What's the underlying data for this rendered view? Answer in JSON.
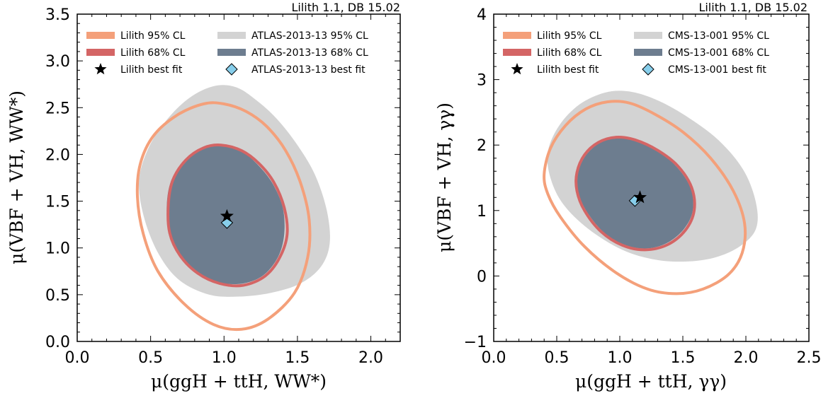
{
  "chart_data": [
    {
      "type": "contour",
      "corner_text": "Lilith 1.1, DB 15.02",
      "xlabel": "μ(ggH + ttH, WW*)",
      "ylabel": "μ(VBF + VH, WW*)",
      "xlim": [
        0.0,
        2.2
      ],
      "ylim": [
        0.0,
        3.5
      ],
      "xticks": [
        "0.0",
        "0.5",
        "1.0",
        "1.5",
        "2.0"
      ],
      "yticks": [
        "0.0",
        "0.5",
        "1.0",
        "1.5",
        "2.0",
        "2.5",
        "3.0",
        "3.5"
      ],
      "legend_position": "top",
      "series": [
        {
          "name": "Lilith 95% CL",
          "kind": "contour-line",
          "color": "#f4a07a",
          "points": [
            [
              0.41,
              1.55
            ],
            [
              0.43,
              1.9
            ],
            [
              0.52,
              2.2
            ],
            [
              0.68,
              2.42
            ],
            [
              0.86,
              2.54
            ],
            [
              1.0,
              2.54
            ],
            [
              1.15,
              2.46
            ],
            [
              1.29,
              2.3
            ],
            [
              1.42,
              2.04
            ],
            [
              1.52,
              1.7
            ],
            [
              1.58,
              1.3
            ],
            [
              1.57,
              0.9
            ],
            [
              1.48,
              0.52
            ],
            [
              1.3,
              0.24
            ],
            [
              1.12,
              0.13
            ],
            [
              0.93,
              0.18
            ],
            [
              0.73,
              0.4
            ],
            [
              0.55,
              0.75
            ],
            [
              0.45,
              1.15
            ]
          ]
        },
        {
          "name": "Lilith 68% CL",
          "kind": "contour-line",
          "color": "#d46565",
          "points": [
            [
              0.62,
              1.45
            ],
            [
              0.65,
              1.72
            ],
            [
              0.74,
              1.94
            ],
            [
              0.86,
              2.07
            ],
            [
              0.98,
              2.1
            ],
            [
              1.12,
              2.04
            ],
            [
              1.24,
              1.9
            ],
            [
              1.34,
              1.7
            ],
            [
              1.41,
              1.43
            ],
            [
              1.43,
              1.15
            ],
            [
              1.38,
              0.9
            ],
            [
              1.28,
              0.7
            ],
            [
              1.13,
              0.6
            ],
            [
              0.97,
              0.62
            ],
            [
              0.82,
              0.73
            ],
            [
              0.7,
              0.92
            ],
            [
              0.63,
              1.16
            ]
          ]
        },
        {
          "name": "ATLAS-2013-13 95% CL",
          "kind": "filled-region",
          "color": "#d3d3d3",
          "points": [
            [
              0.42,
              1.7
            ],
            [
              0.48,
              2.05
            ],
            [
              0.6,
              2.35
            ],
            [
              0.76,
              2.6
            ],
            [
              0.93,
              2.73
            ],
            [
              1.08,
              2.72
            ],
            [
              1.22,
              2.58
            ],
            [
              1.36,
              2.38
            ],
            [
              1.5,
              2.1
            ],
            [
              1.62,
              1.78
            ],
            [
              1.7,
              1.4
            ],
            [
              1.72,
              1.05
            ],
            [
              1.66,
              0.8
            ],
            [
              1.52,
              0.62
            ],
            [
              1.32,
              0.52
            ],
            [
              1.1,
              0.48
            ],
            [
              0.9,
              0.5
            ],
            [
              0.7,
              0.65
            ],
            [
              0.56,
              0.92
            ],
            [
              0.46,
              1.3
            ]
          ]
        },
        {
          "name": "ATLAS-2013-13 68% CL",
          "kind": "filled-region",
          "color": "#6d7d8f",
          "points": [
            [
              0.61,
              1.45
            ],
            [
              0.64,
              1.72
            ],
            [
              0.73,
              1.93
            ],
            [
              0.85,
              2.06
            ],
            [
              0.98,
              2.09
            ],
            [
              1.12,
              2.03
            ],
            [
              1.23,
              1.89
            ],
            [
              1.33,
              1.69
            ],
            [
              1.4,
              1.43
            ],
            [
              1.41,
              1.15
            ],
            [
              1.37,
              0.91
            ],
            [
              1.27,
              0.71
            ],
            [
              1.13,
              0.62
            ],
            [
              0.97,
              0.63
            ],
            [
              0.82,
              0.74
            ],
            [
              0.7,
              0.93
            ],
            [
              0.63,
              1.17
            ]
          ]
        },
        {
          "name": "Lilith best fit",
          "kind": "marker",
          "marker": "star",
          "color": "#000000",
          "x": 1.02,
          "y": 1.34
        },
        {
          "name": "ATLAS-2013-13 best fit",
          "kind": "marker",
          "marker": "diamond",
          "color": "#87ceeb",
          "x": 1.02,
          "y": 1.27
        }
      ]
    },
    {
      "type": "contour",
      "corner_text": "Lilith 1.1, DB 15.02",
      "xlabel": "μ(ggH + ttH, γγ)",
      "ylabel": "μ(VBF + VH, γγ)",
      "xlim": [
        0.0,
        2.5
      ],
      "ylim": [
        -1.0,
        4.0
      ],
      "xticks": [
        "0.0",
        "0.5",
        "1.0",
        "1.5",
        "2.0",
        "2.5"
      ],
      "yticks": [
        "−1",
        "0",
        "1",
        "2",
        "3",
        "4"
      ],
      "legend_position": "top",
      "series": [
        {
          "name": "Lilith 95% CL",
          "kind": "contour-line",
          "color": "#f4a07a",
          "points": [
            [
              0.4,
              1.55
            ],
            [
              0.45,
              1.95
            ],
            [
              0.57,
              2.3
            ],
            [
              0.73,
              2.55
            ],
            [
              0.9,
              2.66
            ],
            [
              1.08,
              2.64
            ],
            [
              1.28,
              2.47
            ],
            [
              1.5,
              2.2
            ],
            [
              1.72,
              1.8
            ],
            [
              1.9,
              1.3
            ],
            [
              1.99,
              0.8
            ],
            [
              1.97,
              0.35
            ],
            [
              1.86,
              0.02
            ],
            [
              1.66,
              -0.2
            ],
            [
              1.45,
              -0.27
            ],
            [
              1.22,
              -0.2
            ],
            [
              0.97,
              0.05
            ],
            [
              0.72,
              0.45
            ],
            [
              0.53,
              0.9
            ],
            [
              0.43,
              1.25
            ]
          ]
        },
        {
          "name": "Lilith 68% CL",
          "kind": "contour-line",
          "color": "#d46565",
          "points": [
            [
              0.66,
              1.58
            ],
            [
              0.72,
              1.85
            ],
            [
              0.83,
              2.04
            ],
            [
              0.97,
              2.12
            ],
            [
              1.12,
              2.08
            ],
            [
              1.3,
              1.92
            ],
            [
              1.46,
              1.68
            ],
            [
              1.57,
              1.35
            ],
            [
              1.59,
              1.0
            ],
            [
              1.52,
              0.7
            ],
            [
              1.38,
              0.48
            ],
            [
              1.2,
              0.4
            ],
            [
              1.02,
              0.47
            ],
            [
              0.85,
              0.68
            ],
            [
              0.72,
              1.0
            ],
            [
              0.66,
              1.3
            ]
          ]
        },
        {
          "name": "CMS-13-001 95% CL",
          "kind": "filled-region",
          "color": "#d3d3d3",
          "points": [
            [
              0.43,
              1.9
            ],
            [
              0.52,
              2.3
            ],
            [
              0.68,
              2.62
            ],
            [
              0.88,
              2.8
            ],
            [
              1.07,
              2.82
            ],
            [
              1.28,
              2.7
            ],
            [
              1.52,
              2.45
            ],
            [
              1.78,
              2.08
            ],
            [
              1.98,
              1.62
            ],
            [
              2.08,
              1.12
            ],
            [
              2.08,
              0.72
            ],
            [
              1.95,
              0.45
            ],
            [
              1.75,
              0.28
            ],
            [
              1.52,
              0.22
            ],
            [
              1.28,
              0.25
            ],
            [
              1.02,
              0.4
            ],
            [
              0.75,
              0.72
            ],
            [
              0.55,
              1.1
            ],
            [
              0.45,
              1.5
            ]
          ]
        },
        {
          "name": "CMS-13-001 68% CL",
          "kind": "filled-region",
          "color": "#6d7d8f",
          "points": [
            [
              0.67,
              1.58
            ],
            [
              0.73,
              1.84
            ],
            [
              0.84,
              2.03
            ],
            [
              0.97,
              2.1
            ],
            [
              1.12,
              2.07
            ],
            [
              1.3,
              1.91
            ],
            [
              1.45,
              1.67
            ],
            [
              1.56,
              1.35
            ],
            [
              1.58,
              1.01
            ],
            [
              1.51,
              0.72
            ],
            [
              1.37,
              0.5
            ],
            [
              1.2,
              0.42
            ],
            [
              1.02,
              0.49
            ],
            [
              0.86,
              0.69
            ],
            [
              0.73,
              1.01
            ],
            [
              0.67,
              1.3
            ]
          ]
        },
        {
          "name": "Lilith best fit",
          "kind": "marker",
          "marker": "star",
          "color": "#000000",
          "x": 1.16,
          "y": 1.2
        },
        {
          "name": "CMS-13-001 best fit",
          "kind": "marker",
          "marker": "diamond",
          "color": "#87ceeb",
          "x": 1.12,
          "y": 1.15
        }
      ]
    }
  ]
}
